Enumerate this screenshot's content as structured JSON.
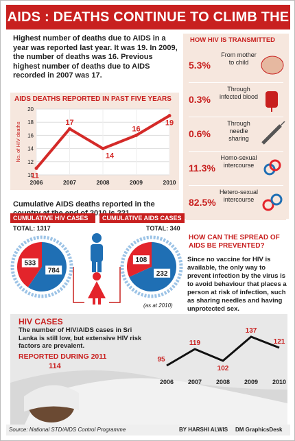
{
  "header": {
    "title": "AIDS : DEATHS CONTINUE TO CLIMB THE LADDER"
  },
  "intro": {
    "text": "Highest number of deaths due to AIDS in a year was reported last year. It was 19. In 2009, the number of deaths was 16. Previous highest number of deaths due to AIDS recorded in 2007 was 17."
  },
  "deaths_section": {
    "heading": "AIDS DEATHS REPORTED IN PAST FIVE YEARS"
  },
  "cumulative_deaths": {
    "text": "Cumulative AIDS deaths reported in the country at the end of 2010 is 221."
  },
  "transmission": {
    "heading": "HOW HIV IS TRANSMITTED",
    "items": [
      {
        "pct": "5.3%",
        "label": "From mother to child",
        "icon": "baby-icon"
      },
      {
        "pct": "0.3%",
        "label": "Through infected blood",
        "icon": "blood-bag-icon"
      },
      {
        "pct": "0.6%",
        "label": "Through needle sharing",
        "icon": "syringe-icon"
      },
      {
        "pct": "11.3%",
        "label": "Homo-sexual intercourse",
        "icon": "male-male-icon"
      },
      {
        "pct": "82.5%",
        "label": "Hetero-sexual intercourse",
        "icon": "male-female-icon"
      }
    ]
  },
  "cumulative_cases": {
    "hiv_tag": "CUMULATIVE HIV CASES",
    "aids_tag": "CUMULATIVE AIDS CASES",
    "hiv_total": "TOTAL: 1317",
    "aids_total": "TOTAL: 340",
    "note": "(as at 2010)",
    "colors": {
      "male": "#1f6fb4",
      "female": "#e3242b"
    }
  },
  "prevention": {
    "heading": "HOW CAN THE SPREAD OF AIDS BE PREVENTED?",
    "text": "Since no vaccine for HIV is available, the only way to prevent infection by the virus is to avoid behaviour that places a person at risk of infection, such as sharing needles and having unprotected sex."
  },
  "hiv_cases": {
    "heading": "HIV CASES",
    "text": "The number of HIV/AIDS cases in Sri Lanka is still low, but extensive HIV risk factors are prevalent.",
    "reported_label": "REPORTED DURING 2011",
    "reported_value": "114"
  },
  "footer": {
    "source": "Source: National STD/AIDS Control Programme",
    "credit": "BY HARSHI ALWIS",
    "brand": "DM GraphicsDesk"
  },
  "chart_data": [
    {
      "type": "line",
      "title": "AIDS DEATHS REPORTED IN PAST FIVE YEARS",
      "x": [
        "2006",
        "2007",
        "2008",
        "2009",
        "2010"
      ],
      "series": [
        {
          "values": [
            11,
            17,
            14,
            16,
            19
          ]
        }
      ],
      "ylabel": "No. of HIV deaths",
      "ylim": [
        10,
        20
      ],
      "yticks": [
        10,
        12,
        14,
        16,
        18,
        20
      ],
      "grid": true,
      "color": "#d42a28"
    },
    {
      "type": "pie",
      "title": "CUMULATIVE HIV CASES",
      "categories": [
        "Male",
        "Female"
      ],
      "values": [
        784,
        533
      ],
      "total": 1317
    },
    {
      "type": "pie",
      "title": "CUMULATIVE AIDS CASES",
      "categories": [
        "Male",
        "Female"
      ],
      "values": [
        232,
        108
      ],
      "total": 340
    },
    {
      "type": "line",
      "title": "HIV CASES",
      "x": [
        "2006",
        "2007",
        "2008",
        "2009",
        "2010"
      ],
      "series": [
        {
          "values": [
            95,
            119,
            102,
            137,
            121
          ]
        }
      ],
      "grid": false,
      "color": "#111111"
    }
  ]
}
